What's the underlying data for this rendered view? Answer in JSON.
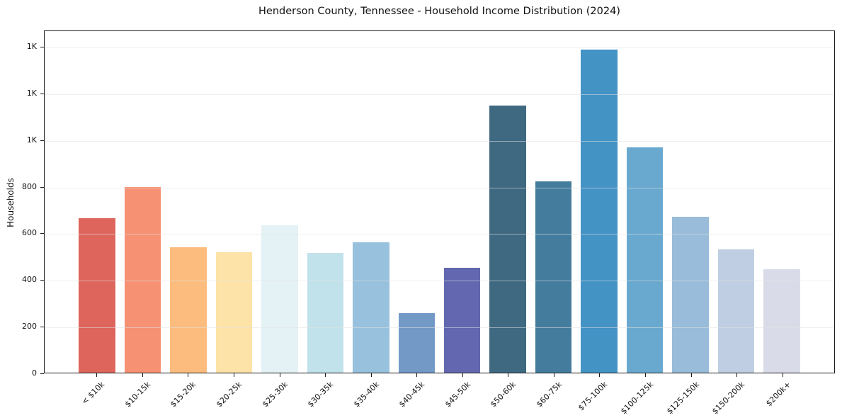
{
  "page": {
    "background_color": "#ffffff",
    "text_color": "#111111"
  },
  "chart_data": {
    "type": "bar",
    "title": "Henderson County, Tennessee - Household Income Distribution (2024)",
    "xlabel": "",
    "ylabel": "Households",
    "categories": [
      "< $10k",
      "$10-15k",
      "$15-20k",
      "$20-25k",
      "$25-30k",
      "$30-35k",
      "$35-40k",
      "$40-45k",
      "$45-50k",
      "$50-60k",
      "$60-75k",
      "$75-100k",
      "$100-125k",
      "$125-150k",
      "$150-200k",
      "$200k+"
    ],
    "values": [
      665,
      800,
      540,
      520,
      635,
      515,
      560,
      255,
      450,
      1150,
      825,
      1390,
      970,
      670,
      530,
      445
    ],
    "bar_colors": [
      "#dc5d53",
      "#f58b6d",
      "#fbb877",
      "#fde2a2",
      "#e4f1f4",
      "#bfe0ea",
      "#92bedb",
      "#6b93c4",
      "#5a5fab",
      "#35617a",
      "#3a7599",
      "#398dc2",
      "#62a4cc",
      "#92b8d8",
      "#bccbe0",
      "#d7dae7"
    ],
    "ylim": [
      0,
      1470
    ],
    "yticks": {
      "values": [
        0,
        200,
        400,
        600,
        800,
        1000,
        1200,
        1400
      ],
      "labels": [
        "0",
        "200",
        "400",
        "600",
        "800",
        "1K",
        "1K",
        "1K"
      ]
    },
    "grid": "horizontal",
    "legend": "none"
  }
}
